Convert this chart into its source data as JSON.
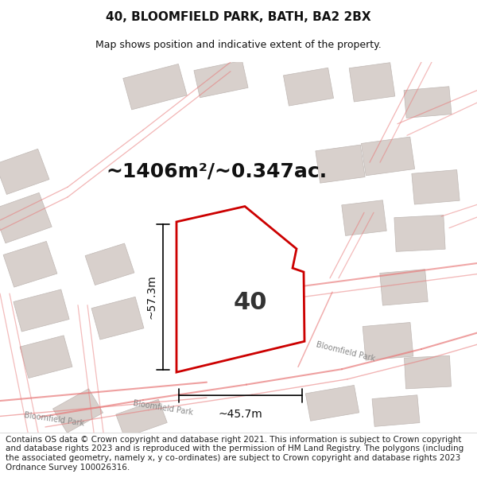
{
  "title": "40, BLOOMFIELD PARK, BATH, BA2 2BX",
  "subtitle": "Map shows position and indicative extent of the property.",
  "area_text": "~1406m²/~0.347ac.",
  "label": "40",
  "dim_vertical": "~57.3m",
  "dim_horizontal": "~45.7m",
  "street_label1": "Bloomfield Park",
  "street_label2": "Bloomfield Park",
  "street_label3": "Bloomfield Park",
  "copyright_text": "Contains OS data © Crown copyright and database right 2021. This information is subject to Crown copyright and database rights 2023 and is reproduced with the permission of HM Land Registry. The polygons (including the associated geometry, namely x, y co-ordinates) are subject to Crown copyright and database rights 2023 Ordnance Survey 100026316.",
  "map_bg": "#f7f3f0",
  "building_color": "#d8d0cc",
  "road_line_color": "#e87878",
  "property_color": "#ffffff",
  "property_edge": "#cc0000",
  "title_color": "#111111",
  "title_fontsize": 11,
  "subtitle_fontsize": 9,
  "area_fontsize": 18,
  "label_fontsize": 22,
  "dim_fontsize": 10,
  "street_fontsize": 7,
  "footer_fontsize": 7.5
}
